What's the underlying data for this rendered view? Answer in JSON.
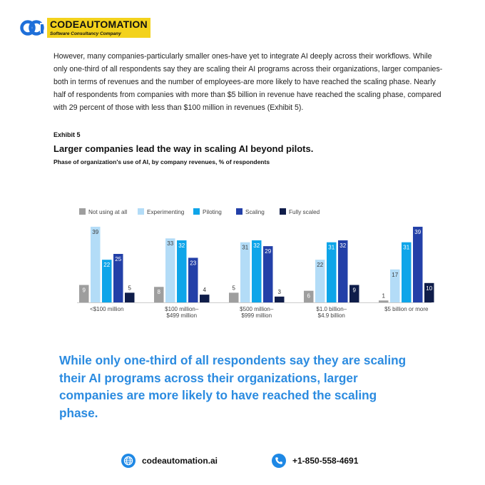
{
  "header": {
    "logo_name": "CODEAUTOMATION",
    "logo_tagline": "Software Consultancy Company"
  },
  "body_text": "However, many companies-particularly smaller ones-have yet to integrate AI deeply across their workflows. While only one-third of all respondents say they are scaling their AI programs across their organizations, larger companies-both in terms of revenues and the number of employees-are more likely to have reached the scaling phase. Nearly half of respondents from companies with more than $5 billion in revenue have reached the scaling phase, compared with 29 percent of those with less than $100 million in revenues (Exhibit 5).",
  "exhibit": {
    "label": "Exhibit 5",
    "title": "Larger companies lead the way in scaling AI beyond pilots.",
    "subtitle": "Phase of organization's use of AI, by company revenues, % of respondents"
  },
  "chart_data": {
    "type": "bar",
    "categories": [
      [
        "<$100 million"
      ],
      [
        "$100 million–",
        "$499 million"
      ],
      [
        "$500 million–",
        "$999 million"
      ],
      [
        "$1.0 billion–",
        "$4.9 billion"
      ],
      [
        "$5 billion or more"
      ]
    ],
    "series": [
      {
        "name": "Not using at all",
        "color": "#9e9e9e",
        "values": [
          9,
          8,
          5,
          6,
          1
        ]
      },
      {
        "name": "Experimenting",
        "color": "#b3dcf7",
        "values": [
          39,
          33,
          31,
          22,
          17
        ]
      },
      {
        "name": "Piloting",
        "color": "#0ea5e9",
        "values": [
          22,
          32,
          32,
          31,
          31
        ]
      },
      {
        "name": "Scaling",
        "color": "#2340a8",
        "values": [
          25,
          23,
          29,
          32,
          39
        ]
      },
      {
        "name": "Fully scaled",
        "color": "#0f1d4a",
        "values": [
          5,
          4,
          3,
          9,
          10
        ]
      }
    ],
    "legend_position": "top-left",
    "ylim": [
      0,
      40
    ],
    "grid": false
  },
  "callout": "While only one-third of all respondents say they are scaling their AI programs across their organizations, larger companies are more likely to have reached the scaling phase.",
  "footer": {
    "website": "codeautomation.ai",
    "phone": "+1-850-558-4691",
    "website_icon": "globe-icon",
    "phone_icon": "phone-icon",
    "accent": "#1e88e5"
  }
}
